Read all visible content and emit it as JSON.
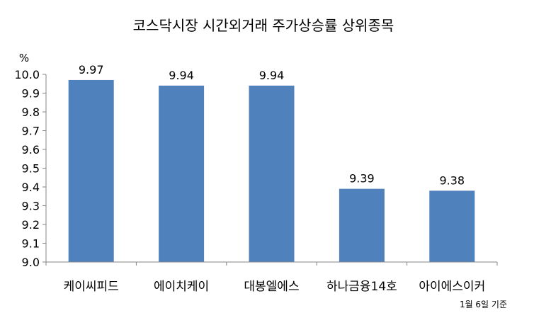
{
  "chart_data": {
    "type": "bar",
    "title": "코스닥시장 시간외거래  주가상승률 상위종목",
    "ylabel": "%",
    "categories": [
      "케이씨피드",
      "에이치케이",
      "대봉엘에스",
      "하나금융14호",
      "아이에스이커"
    ],
    "values": [
      9.97,
      9.94,
      9.94,
      9.39,
      9.38
    ],
    "data_labels": [
      "9.97",
      "9.94",
      "9.94",
      "9.39",
      "9.38"
    ],
    "ylim": [
      9.0,
      10.0
    ],
    "yticks": [
      "9.0",
      "9.1",
      "9.2",
      "9.3",
      "9.4",
      "9.5",
      "9.6",
      "9.7",
      "9.8",
      "9.9",
      "10.0"
    ],
    "grid": false,
    "legend": "none",
    "bar_color": "#4f81bd",
    "note": "1월 6일 기준"
  }
}
